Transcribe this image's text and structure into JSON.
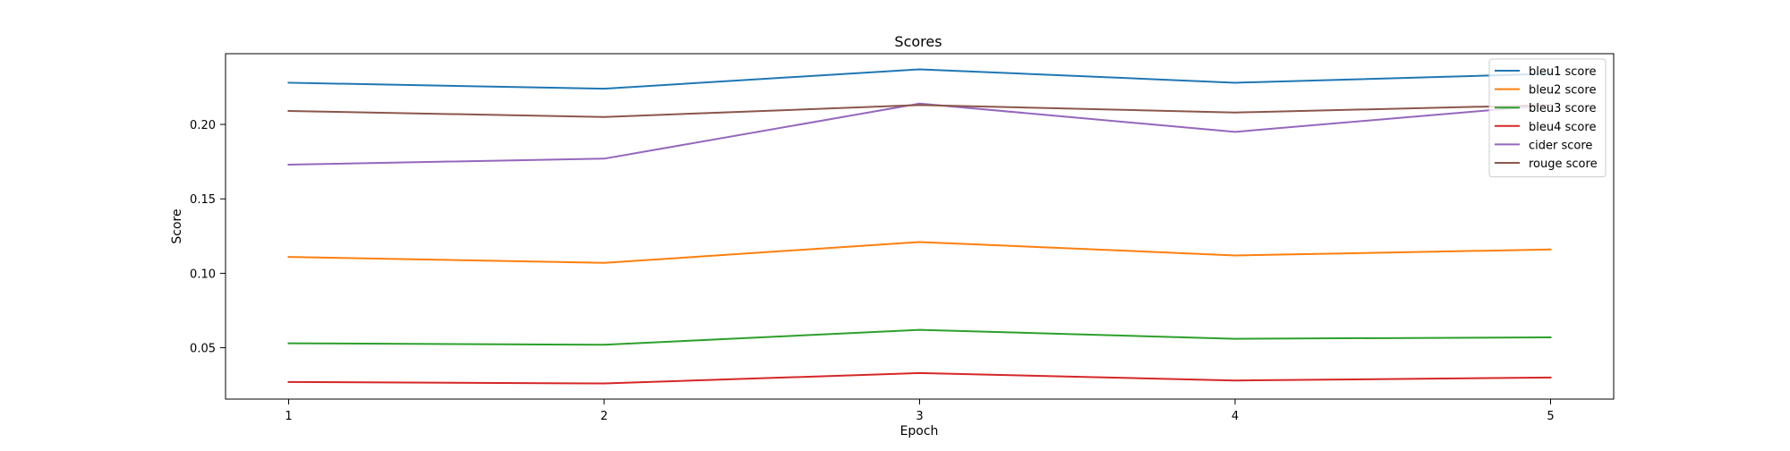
{
  "chart_data": {
    "type": "line",
    "title": "Scores",
    "xlabel": "Epoch",
    "ylabel": "Score",
    "x": [
      1,
      2,
      3,
      4,
      5
    ],
    "x_ticks": [
      "1",
      "2",
      "3",
      "4",
      "5"
    ],
    "y_ticks": [
      "0.05",
      "0.10",
      "0.15",
      "0.20"
    ],
    "y_tick_values": [
      0.05,
      0.1,
      0.15,
      0.2
    ],
    "xlim": [
      0.8,
      5.2
    ],
    "ylim": [
      0.0155,
      0.2475
    ],
    "grid": false,
    "legend_position": "top-right",
    "series": [
      {
        "name": "bleu1 score",
        "color": "#1f77b4",
        "values": [
          0.228,
          0.224,
          0.237,
          0.228,
          0.234
        ]
      },
      {
        "name": "bleu2 score",
        "color": "#ff7f0e",
        "values": [
          0.111,
          0.107,
          0.121,
          0.112,
          0.116
        ]
      },
      {
        "name": "bleu3 score",
        "color": "#2ca02c",
        "values": [
          0.053,
          0.052,
          0.062,
          0.056,
          0.057
        ]
      },
      {
        "name": "bleu4 score",
        "color": "#d62728",
        "values": [
          0.027,
          0.026,
          0.033,
          0.028,
          0.03
        ]
      },
      {
        "name": "cider score",
        "color": "#9467bd",
        "values": [
          0.173,
          0.177,
          0.214,
          0.195,
          0.213
        ]
      },
      {
        "name": "rouge score",
        "color": "#8c564b",
        "values": [
          0.209,
          0.205,
          0.213,
          0.208,
          0.213
        ]
      }
    ]
  }
}
